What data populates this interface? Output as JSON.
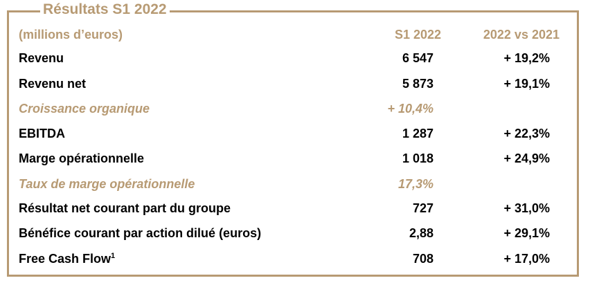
{
  "title": "Résultats S1 2022",
  "header": {
    "label": "(millions d’euros)",
    "col1": "S1 2022",
    "col2": "2022 vs 2021"
  },
  "rows": [
    {
      "label": "Revenu",
      "v1": "6 547",
      "v2": "+ 19,2%"
    },
    {
      "label": "Revenu net",
      "v1": "5 873",
      "v2": "+ 19,1%"
    },
    {
      "label": "Croissance organique",
      "v1": "+ 10,4%",
      "v2": ""
    },
    {
      "label": "EBITDA",
      "v1": "1 287",
      "v2": "+ 22,3%"
    },
    {
      "label": "Marge opérationnelle",
      "v1": "1 018",
      "v2": "+ 24,9%"
    },
    {
      "label": "Taux de marge opérationnelle",
      "v1": "17,3%",
      "v2": ""
    },
    {
      "label": "Résultat net courant part du groupe",
      "v1": "727",
      "v2": "+ 31,0%"
    },
    {
      "label": "Bénéfice courant par action dilué (euros)",
      "v1": "2,88",
      "v2": "+ 29,1%"
    },
    {
      "label": "Free Cash Flow",
      "footnote": "1",
      "v1": "708",
      "v2": "+ 17,0%"
    }
  ],
  "colors": {
    "accent": "#b79a73",
    "text": "#000000"
  }
}
